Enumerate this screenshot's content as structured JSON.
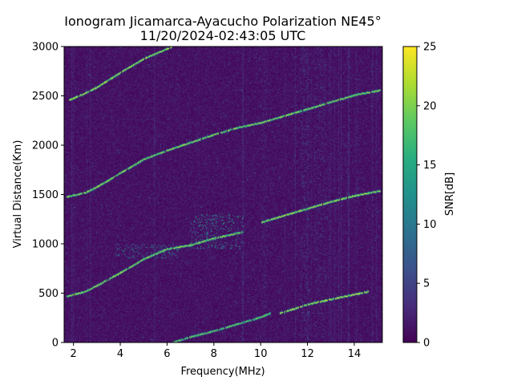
{
  "chart_data": {
    "type": "heatmap",
    "title_line1": "Ionogram Jicamarca-Ayacucho Polarization NE45°",
    "title_line2": "11/20/2024-02:43:05 UTC",
    "xlabel": "Frequency(MHz)",
    "ylabel": "Virtual Distance(Km)",
    "colorbar_label": "SNR[dB]",
    "colormap": "viridis",
    "xlim": [
      1.6,
      15.2
    ],
    "ylim": [
      0,
      3000
    ],
    "clim": [
      0,
      25
    ],
    "x_ticks": [
      2,
      4,
      6,
      8,
      10,
      12,
      14
    ],
    "y_ticks": [
      0,
      500,
      1000,
      1500,
      2000,
      2500,
      3000
    ],
    "colorbar_ticks": [
      0,
      5,
      10,
      15,
      20,
      25
    ],
    "background_snr": 2,
    "traces": [
      {
        "points": [
          [
            6.2,
            0
          ],
          [
            7.0,
            60
          ],
          [
            8.0,
            120
          ],
          [
            9.0,
            190
          ],
          [
            10.0,
            260
          ],
          [
            10.4,
            300
          ]
        ],
        "snr": 18
      },
      {
        "points": [
          [
            10.8,
            300
          ],
          [
            11.5,
            350
          ],
          [
            12.0,
            390
          ],
          [
            13.0,
            440
          ],
          [
            14.0,
            490
          ],
          [
            14.6,
            520
          ]
        ],
        "snr": 22
      },
      {
        "points": [
          [
            1.7,
            470
          ],
          [
            2.5,
            520
          ],
          [
            3.0,
            580
          ],
          [
            4.0,
            710
          ],
          [
            5.0,
            850
          ],
          [
            6.0,
            950
          ],
          [
            7.0,
            990
          ],
          [
            8.0,
            1060
          ],
          [
            9.2,
            1120
          ]
        ],
        "snr": 20
      },
      {
        "points": [
          [
            10.0,
            1220
          ],
          [
            11.0,
            1290
          ],
          [
            12.0,
            1360
          ],
          [
            13.0,
            1430
          ],
          [
            14.0,
            1490
          ],
          [
            15.1,
            1540
          ]
        ],
        "snr": 21
      },
      {
        "points": [
          [
            1.7,
            1480
          ],
          [
            2.5,
            1520
          ],
          [
            3.0,
            1580
          ],
          [
            4.0,
            1720
          ],
          [
            5.0,
            1860
          ],
          [
            6.0,
            1950
          ],
          [
            7.0,
            2030
          ],
          [
            8.0,
            2110
          ],
          [
            9.0,
            2180
          ],
          [
            10.0,
            2230
          ],
          [
            11.0,
            2300
          ],
          [
            12.0,
            2370
          ],
          [
            13.0,
            2440
          ],
          [
            14.0,
            2510
          ],
          [
            15.1,
            2560
          ]
        ],
        "snr": 20
      },
      {
        "points": [
          [
            1.8,
            2460
          ],
          [
            2.5,
            2530
          ],
          [
            3.0,
            2590
          ],
          [
            4.0,
            2740
          ],
          [
            5.0,
            2880
          ],
          [
            6.0,
            2980
          ],
          [
            6.2,
            3000
          ]
        ],
        "snr": 21
      }
    ],
    "noise_blobs": [
      {
        "x": [
          7.0,
          9.3
        ],
        "y": [
          950,
          1300
        ],
        "snr": 14
      },
      {
        "x": [
          3.8,
          6.5
        ],
        "y": [
          850,
          1000
        ],
        "snr": 12
      },
      {
        "x": [
          11.7,
          12.1
        ],
        "y": [
          0,
          3000
        ],
        "snr": 6
      },
      {
        "x": [
          12.3,
          12.8
        ],
        "y": [
          0,
          3000
        ],
        "snr": 5
      },
      {
        "x": [
          10.0,
          10.3
        ],
        "y": [
          0,
          3000
        ],
        "snr": 4
      }
    ]
  }
}
